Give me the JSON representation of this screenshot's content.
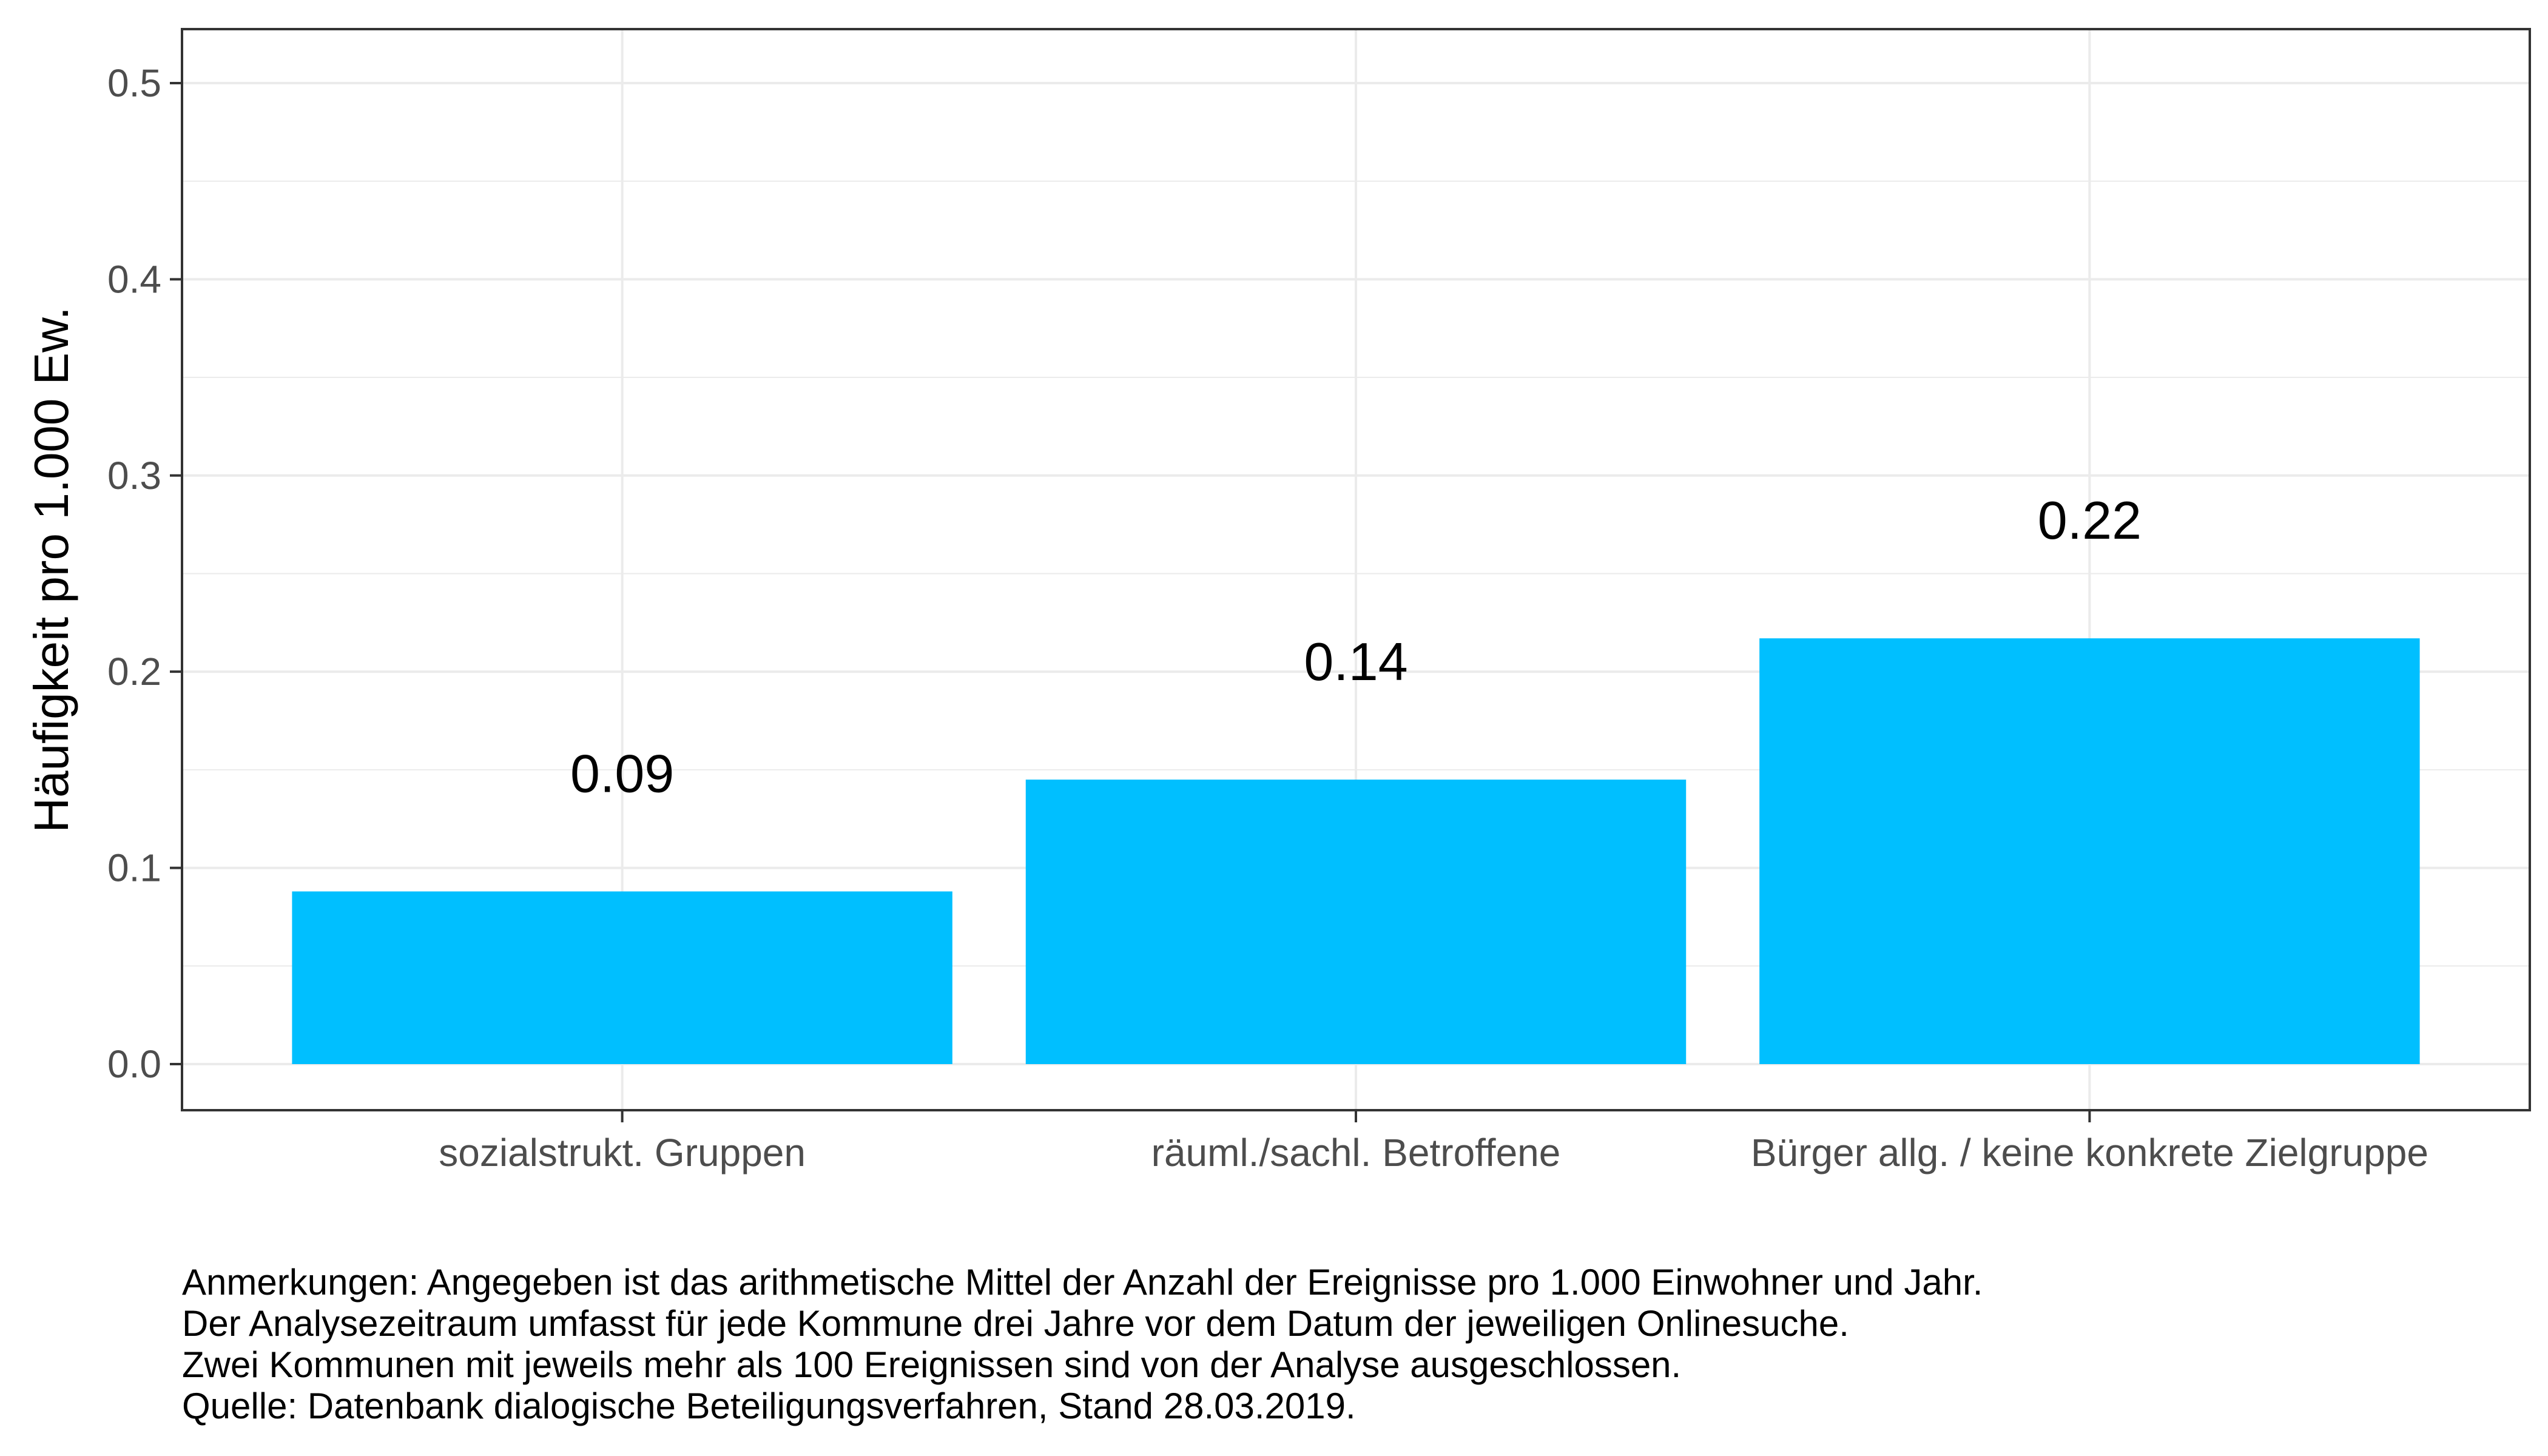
{
  "chart_data": {
    "type": "bar",
    "categories": [
      "sozialstrukt. Gruppen",
      "räuml./sachl. Betroffene",
      "Bürger allg. / keine konkrete Zielgruppe"
    ],
    "values": [
      0.088,
      0.145,
      0.217
    ],
    "value_labels": [
      "0.09",
      "0.14",
      "0.22"
    ],
    "ylabel": "Häufigkeit pro 1.000 Ew.",
    "xlabel": "",
    "ylim": [
      -0.0235,
      0.5275
    ],
    "yticks": [
      0.0,
      0.1,
      0.2,
      0.3,
      0.4,
      0.5
    ],
    "ytick_labels": [
      "0.0",
      "0.1",
      "0.2",
      "0.3",
      "0.4",
      "0.5"
    ],
    "grid": true,
    "bar_color": "#00BFFF"
  },
  "notes": [
    "Anmerkungen: Angegeben ist das arithmetische Mittel der Anzahl der Ereignisse pro 1.000 Einwohner und Jahr.",
    "Der Analysezeitraum umfasst für jede Kommune drei Jahre vor dem Datum der jeweiligen Onlinesuche.",
    "Zwei Kommunen mit jeweils mehr als 100 Ereignissen sind von der Analyse ausgeschlossen.",
    "Quelle: Datenbank dialogische Beteiligungsverfahren, Stand 28.03.2019."
  ]
}
